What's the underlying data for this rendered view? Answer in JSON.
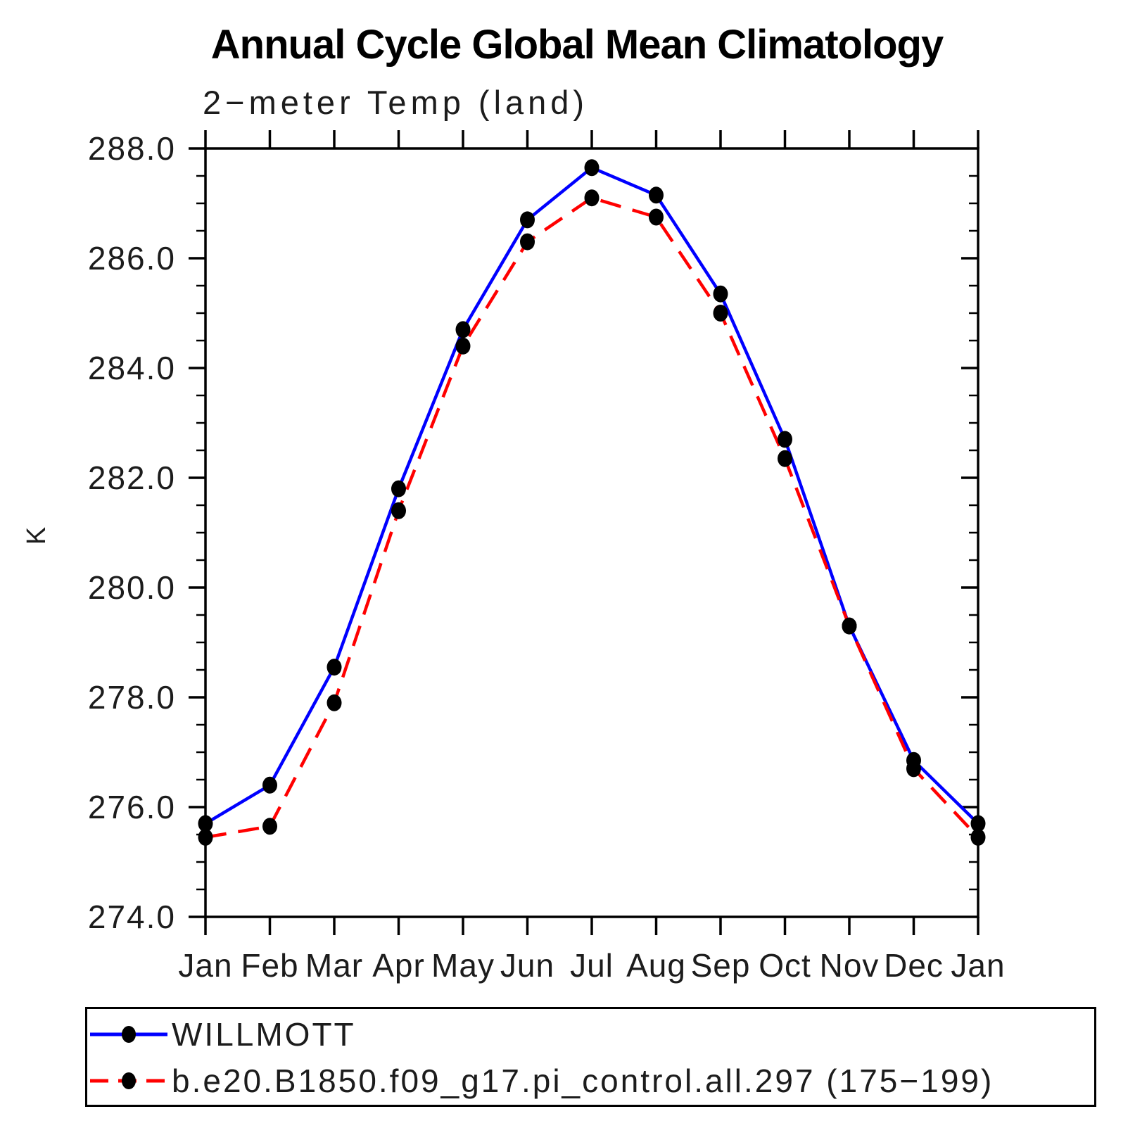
{
  "header": {
    "title": "Annual Cycle Global Mean Climatology",
    "subtitle": "2−meter Temp (land)"
  },
  "y_axis": {
    "title": "K",
    "tick_labels": [
      "288.0",
      "286.0",
      "284.0",
      "282.0",
      "280.0",
      "278.0",
      "276.0",
      "274.0"
    ]
  },
  "x_axis": {
    "tick_labels": [
      "Jan",
      "Feb",
      "Mar",
      "Apr",
      "May",
      "Jun",
      "Jul",
      "Aug",
      "Sep",
      "Oct",
      "Nov",
      "Dec",
      "Jan"
    ]
  },
  "colors": {
    "obs_line": "#0000ff",
    "model_line": "#ff0000",
    "marker": "#000000",
    "axis": "#000000"
  },
  "chart_data": {
    "type": "line",
    "title": "Annual Cycle Global Mean Climatology",
    "subtitle": "2-meter Temp (land)",
    "ylabel": "K",
    "xlabel": "",
    "x_categories": [
      "Jan",
      "Feb",
      "Mar",
      "Apr",
      "May",
      "Jun",
      "Jul",
      "Aug",
      "Sep",
      "Oct",
      "Nov",
      "Dec",
      "Jan"
    ],
    "ylim": [
      274.0,
      288.0
    ],
    "ytick_major_interval": 2.0,
    "ytick_minor_interval": 0.5,
    "grid": false,
    "legend_position": "bottom",
    "series": [
      {
        "name": "WILLMOTT",
        "color": "#0000ff",
        "line_style": "solid",
        "marker": "filled-black-circle",
        "values": [
          275.7,
          276.4,
          278.55,
          281.8,
          284.7,
          286.7,
          287.65,
          287.15,
          285.35,
          282.7,
          279.3,
          276.85,
          275.7
        ]
      },
      {
        "name": "b.e20.B1850.f09_g17.pi_control.all.297 (175−199)",
        "color": "#ff0000",
        "line_style": "dashed",
        "marker": "filled-black-circle",
        "values": [
          275.45,
          275.65,
          277.9,
          281.4,
          284.4,
          286.3,
          287.1,
          286.75,
          285.0,
          282.35,
          279.3,
          276.7,
          275.45
        ]
      }
    ]
  }
}
